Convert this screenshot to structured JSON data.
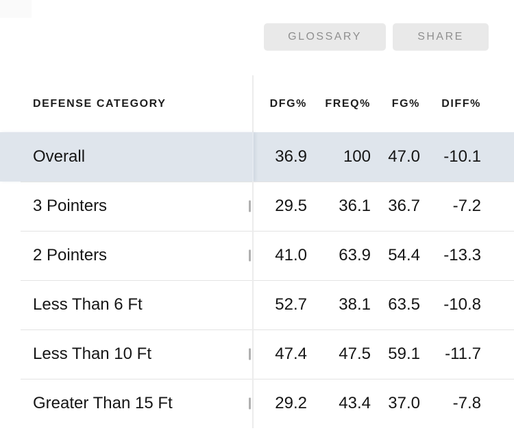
{
  "toolbar": {
    "glossary_label": "GLOSSARY",
    "share_label": "SHARE"
  },
  "table": {
    "category_header": "DEFENSE CATEGORY",
    "columns": [
      "DFG%",
      "FREQ%",
      "FG%",
      "DIFF%"
    ],
    "rows": [
      {
        "category": "Overall",
        "dfg_pct": "36.9",
        "freq_pct": "100",
        "fg_pct": "47.0",
        "diff_pct": "-10.1",
        "highlighted": true,
        "clipped_fragment": false
      },
      {
        "category": "3 Pointers",
        "dfg_pct": "29.5",
        "freq_pct": "36.1",
        "fg_pct": "36.7",
        "diff_pct": "-7.2",
        "highlighted": false,
        "clipped_fragment": true
      },
      {
        "category": "2 Pointers",
        "dfg_pct": "41.0",
        "freq_pct": "63.9",
        "fg_pct": "54.4",
        "diff_pct": "-13.3",
        "highlighted": false,
        "clipped_fragment": true
      },
      {
        "category": "Less Than 6 Ft",
        "dfg_pct": "52.7",
        "freq_pct": "38.1",
        "fg_pct": "63.5",
        "diff_pct": "-10.8",
        "highlighted": false,
        "clipped_fragment": false
      },
      {
        "category": "Less Than 10 Ft",
        "dfg_pct": "47.4",
        "freq_pct": "47.5",
        "fg_pct": "59.1",
        "diff_pct": "-11.7",
        "highlighted": false,
        "clipped_fragment": true
      },
      {
        "category": "Greater Than 15 Ft",
        "dfg_pct": "29.2",
        "freq_pct": "43.4",
        "fg_pct": "37.0",
        "diff_pct": "-7.8",
        "highlighted": false,
        "clipped_fragment": true
      }
    ]
  },
  "colors": {
    "highlight_row": "#dfe5ec",
    "button_bg": "#e9e9e9",
    "button_text": "#8f8f8f",
    "frozen_pane_divider": "#ececec",
    "row_separator": "#e3e3e3",
    "body_text": "#161616",
    "header_text": "#1d1d1d"
  }
}
